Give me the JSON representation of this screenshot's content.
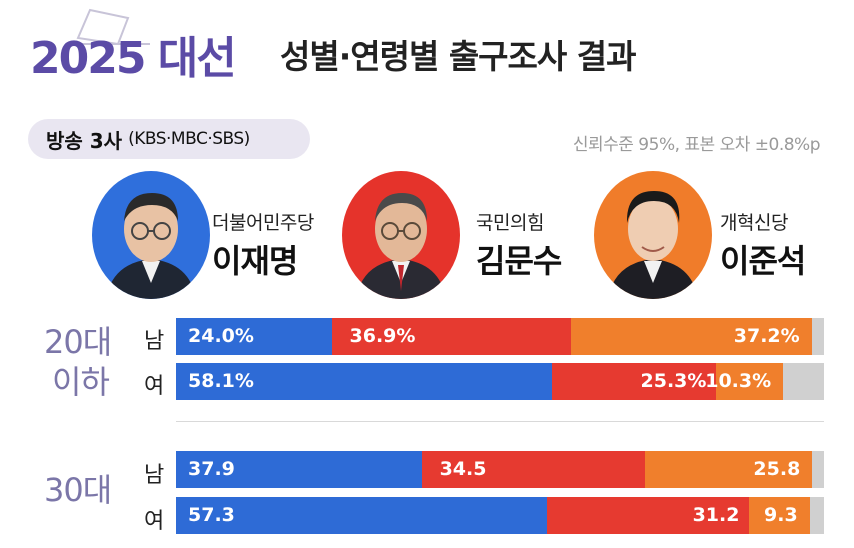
{
  "header": {
    "title_bold": "2025 대선",
    "title_rest": "성별·연령별 출구조사 결과",
    "broadcasters_main": "방송 3사",
    "broadcasters_sub": "(KBS·MBC·SBS)",
    "margin_note": "신뢰수준 95%, 표본 오차 ±0.8%p"
  },
  "candidates": [
    {
      "party": "더불어민주당",
      "name": "이재명",
      "color": "#2e6bd6"
    },
    {
      "party": "국민의힘",
      "name": "김문수",
      "color": "#e63a30"
    },
    {
      "party": "개혁신당",
      "name": "이준석",
      "color": "#f07f2c"
    }
  ],
  "remainder_color": "#d0d0d0",
  "groups": [
    {
      "age_line1": "20대",
      "age_line2": "이하"
    },
    {
      "age_line1": "30대",
      "age_line2": ""
    }
  ],
  "chart_data": {
    "type": "bar",
    "stacked": true,
    "orientation": "horizontal",
    "unit": "%",
    "series_names": [
      "이재명",
      "김문수",
      "이준석"
    ],
    "rows": [
      {
        "group": "20대 이하",
        "gender": "남",
        "values": [
          24.0,
          36.9,
          37.2
        ],
        "labels": [
          "24.0%",
          "36.9%",
          "37.2%"
        ]
      },
      {
        "group": "20대 이하",
        "gender": "여",
        "values": [
          58.1,
          25.3,
          10.3
        ],
        "labels": [
          "58.1%",
          "25.3%",
          "10.3%"
        ]
      },
      {
        "group": "30대",
        "gender": "남",
        "values": [
          37.9,
          34.5,
          25.8
        ],
        "labels": [
          "37.9",
          "34.5",
          "25.8"
        ]
      },
      {
        "group": "30대",
        "gender": "여",
        "values": [
          57.3,
          31.2,
          9.3
        ],
        "labels": [
          "57.3",
          "31.2",
          "9.3"
        ]
      }
    ]
  }
}
